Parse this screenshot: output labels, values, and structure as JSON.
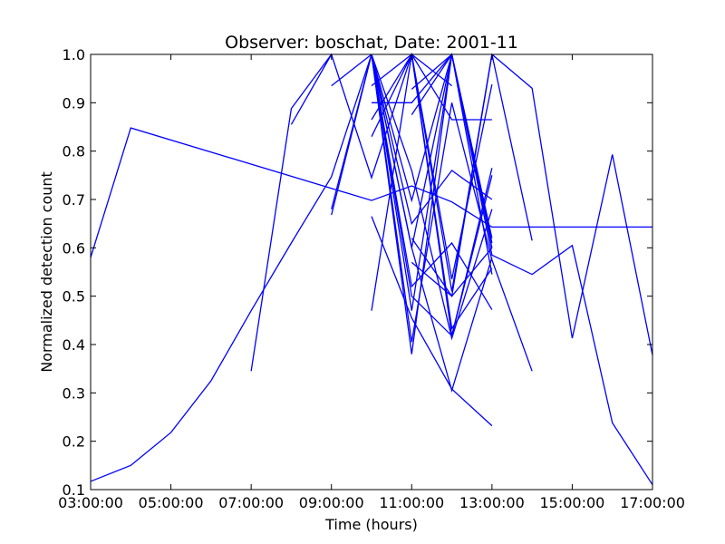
{
  "chart_data": {
    "type": "line",
    "title": "Observer: boschat, Date: 2001-11",
    "xlabel": "Time (hours)",
    "ylabel": "Normalized detection count",
    "xlim": [
      3,
      17
    ],
    "ylim": [
      0.1,
      1.0
    ],
    "x_ticks": [
      3,
      5,
      7,
      9,
      11,
      13,
      15,
      17
    ],
    "x_tick_labels": [
      "03:00:00",
      "05:00:00",
      "07:00:00",
      "09:00:00",
      "11:00:00",
      "13:00:00",
      "15:00:00",
      "17:00:00"
    ],
    "y_ticks": [
      0.1,
      0.2,
      0.3,
      0.4,
      0.5,
      0.6,
      0.7,
      0.8,
      0.9,
      1.0
    ],
    "y_tick_labels": [
      "0.1",
      "0.2",
      "0.3",
      "0.4",
      "0.5",
      "0.6",
      "0.7",
      "0.8",
      "0.9",
      "1.0"
    ],
    "grid": false,
    "line_color": "#0000ff",
    "series": [
      {
        "x": [
          3,
          4,
          10,
          11,
          12,
          13,
          14,
          15,
          16,
          17
        ],
        "y": [
          0.58,
          0.848,
          0.698,
          0.728,
          0.695,
          0.643,
          0.643,
          0.643,
          0.643,
          0.643
        ]
      },
      {
        "x": [
          3,
          4,
          5,
          6,
          7,
          8,
          9,
          10,
          11,
          12,
          13,
          14,
          15,
          16,
          17
        ],
        "y": [
          0.117,
          0.15,
          0.218,
          0.325,
          0.47,
          0.61,
          0.747,
          1.0,
          0.47,
          1.0,
          0.585,
          0.545,
          0.605,
          0.238,
          0.11
        ]
      },
      {
        "x": [
          7,
          8,
          9,
          10,
          11,
          12,
          13,
          14,
          15,
          16,
          17
        ],
        "y": [
          0.345,
          0.888,
          1.0,
          0.745,
          1.0,
          0.51,
          1.0,
          0.93,
          0.413,
          0.793,
          0.378
        ]
      },
      {
        "x": [
          8,
          9
        ],
        "y": [
          0.855,
          1.0
        ]
      },
      {
        "x": [
          9,
          10,
          11,
          12
        ],
        "y": [
          0.668,
          1.0,
          0.38,
          1.0
        ]
      },
      {
        "x": [
          9,
          10
        ],
        "y": [
          0.935,
          1.0
        ]
      },
      {
        "x": [
          9,
          10,
          11,
          12,
          13
        ],
        "y": [
          0.68,
          1.0,
          0.6,
          1.0,
          0.61
        ]
      },
      {
        "x": [
          10,
          11,
          12,
          13
        ],
        "y": [
          0.47,
          1.0,
          0.418,
          0.765
        ]
      },
      {
        "x": [
          10,
          11,
          12,
          13
        ],
        "y": [
          0.83,
          1.0,
          0.433,
          0.558
        ]
      },
      {
        "x": [
          10,
          11,
          12,
          13
        ],
        "y": [
          0.865,
          1.0,
          0.535,
          0.938
        ]
      },
      {
        "x": [
          10,
          11,
          12,
          13
        ],
        "y": [
          0.9,
          0.9,
          1.0,
          0.6
        ]
      },
      {
        "x": [
          10,
          11,
          12,
          13
        ],
        "y": [
          0.935,
          1.0,
          0.865,
          0.865
        ]
      },
      {
        "x": [
          10,
          11,
          12,
          13
        ],
        "y": [
          0.665,
          0.455,
          0.308,
          0.232
        ]
      },
      {
        "x": [
          10,
          11,
          12,
          13
        ],
        "y": [
          1.0,
          0.6,
          0.305,
          0.58
        ]
      },
      {
        "x": [
          10,
          11,
          12,
          13
        ],
        "y": [
          1.0,
          0.76,
          0.413,
          0.68
        ]
      },
      {
        "x": [
          10,
          11,
          12,
          13
        ],
        "y": [
          1.0,
          0.65,
          0.76,
          0.7
        ]
      },
      {
        "x": [
          10,
          11,
          12,
          13
        ],
        "y": [
          1.0,
          0.5,
          0.418,
          0.75
        ]
      },
      {
        "x": [
          10,
          11,
          12,
          13,
          14
        ],
        "y": [
          1.0,
          0.405,
          0.9,
          0.575,
          0.345
        ]
      },
      {
        "x": [
          10,
          11,
          12,
          13
        ],
        "y": [
          1.0,
          0.52,
          0.61,
          0.472
        ]
      },
      {
        "x": [
          10,
          11,
          12,
          13
        ],
        "y": [
          1.0,
          0.698,
          1.0,
          0.545
        ]
      },
      {
        "x": [
          11,
          12
        ],
        "y": [
          0.928,
          1.0
        ]
      },
      {
        "x": [
          11,
          12
        ],
        "y": [
          1.0,
          0.935
        ]
      },
      {
        "x": [
          11,
          12,
          13
        ],
        "y": [
          0.875,
          1.0,
          0.62
        ]
      },
      {
        "x": [
          11,
          12,
          13
        ],
        "y": [
          0.62,
          0.5,
          0.6
        ]
      },
      {
        "x": [
          11,
          12,
          13,
          14
        ],
        "y": [
          0.57,
          0.5,
          1.0,
          0.615
        ]
      }
    ]
  }
}
